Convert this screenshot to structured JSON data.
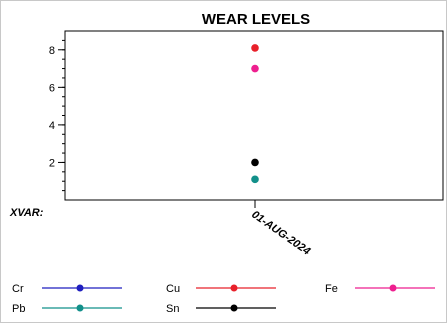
{
  "chart_data": {
    "type": "scatter",
    "title": "WEAR LEVELS",
    "xlabel": "XVAR:",
    "ylabel": "",
    "categories": [
      "01-AUG-2024"
    ],
    "ylim": [
      0,
      9
    ],
    "yticks": [
      2,
      4,
      6,
      8
    ],
    "grid": false,
    "legend_position": "bottom",
    "series": [
      {
        "name": "Cr",
        "color": "#1f1fbf",
        "values": [
          null
        ]
      },
      {
        "name": "Cu",
        "color": "#e8202a",
        "values": [
          8.1
        ]
      },
      {
        "name": "Fe",
        "color": "#ee1f8f",
        "values": [
          7.0
        ]
      },
      {
        "name": "Pb",
        "color": "#12908a",
        "values": [
          1.1
        ]
      },
      {
        "name": "Sn",
        "color": "#000000",
        "values": [
          2.0
        ]
      }
    ]
  }
}
